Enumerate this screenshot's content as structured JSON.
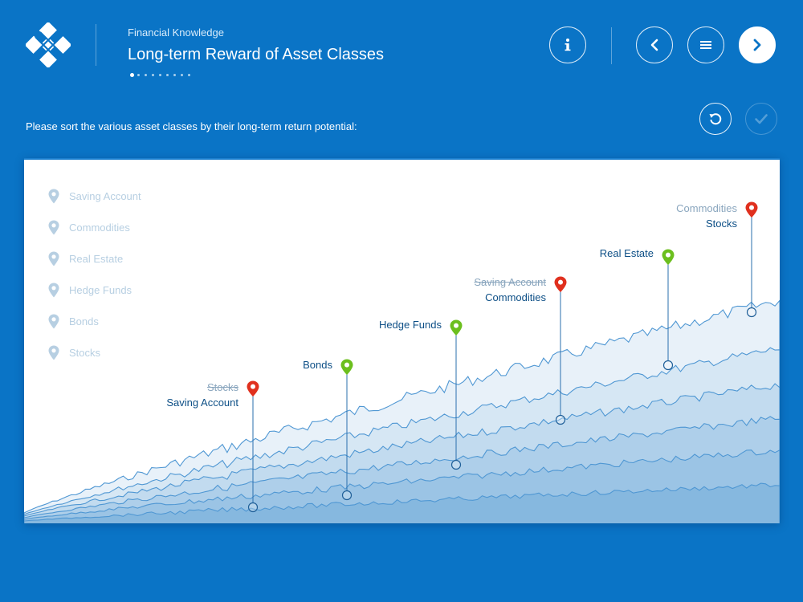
{
  "header": {
    "kicker": "Financial Knowledge",
    "title": "Long-term Reward of Asset Classes",
    "progress": {
      "current_page": 1,
      "total_pages": 9
    }
  },
  "nav": {
    "info_icon": "info-icon",
    "back_icon": "chevron-left-icon",
    "menu_icon": "menu-icon",
    "next_icon": "chevron-right-icon"
  },
  "actions": {
    "reset_icon": "reset-icon",
    "confirm_icon": "check-icon"
  },
  "instruction": "Please sort the various asset classes by their long-term return potential:",
  "options": [
    {
      "label": "Saving Account"
    },
    {
      "label": "Commodities"
    },
    {
      "label": "Real Estate"
    },
    {
      "label": "Hedge Funds"
    },
    {
      "label": "Bonds"
    },
    {
      "label": "Stocks"
    }
  ],
  "markers": [
    {
      "rank": 1,
      "status": "wrong",
      "placed": "Stocks",
      "correct": "Saving Account"
    },
    {
      "rank": 2,
      "status": "right",
      "placed": "Bonds"
    },
    {
      "rank": 3,
      "status": "right",
      "placed": "Hedge Funds"
    },
    {
      "rank": 4,
      "status": "wrong",
      "placed": "Saving Account",
      "correct": "Commodities"
    },
    {
      "rank": 5,
      "status": "right",
      "placed": "Real Estate"
    },
    {
      "rank": 6,
      "status": "wrong",
      "placed": "Commodities",
      "correct": "Stocks"
    }
  ],
  "colors": {
    "background": "#0a74c6",
    "wrong": "#e0301e",
    "right": "#6cbf1e",
    "option_inactive": "#b7cfe2",
    "label_dark": "#0d4f86"
  }
}
